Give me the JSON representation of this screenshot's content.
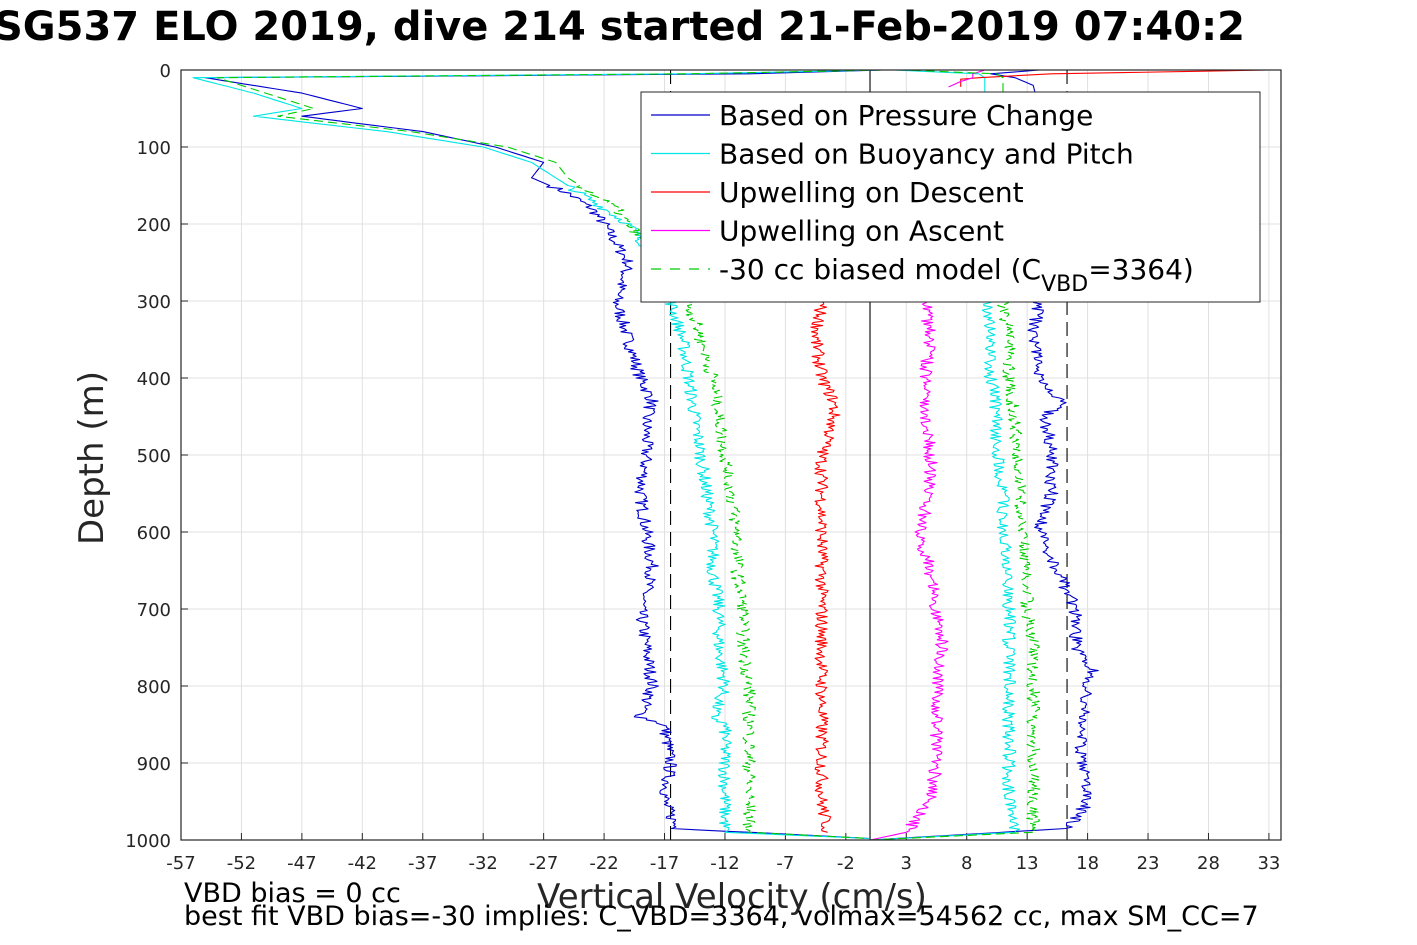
{
  "title": "SG537 ELO 2019, dive 214 started 21-Feb-2019 07:40:2",
  "chart_data": {
    "type": "line",
    "xlabel": "Vertical Velocity (cm/s)",
    "ylabel": "Depth (m)",
    "xlim": [
      -57,
      34
    ],
    "ylim": [
      0,
      1000
    ],
    "y_reversed": true,
    "grid": true,
    "xticks": [
      "-57",
      "-52",
      "-47",
      "-42",
      "-37",
      "-32",
      "-27",
      "-22",
      "-17",
      "-12",
      "-7",
      "-2",
      "3",
      "8",
      "13",
      "18",
      "23",
      "28",
      "33"
    ],
    "yticks": [
      "0",
      "100",
      "200",
      "300",
      "400",
      "500",
      "600",
      "700",
      "800",
      "900",
      "1000"
    ],
    "reference_lines": [
      {
        "x": -16.5,
        "style": "dashed",
        "color": "#000000"
      },
      {
        "x": 0,
        "style": "solid",
        "color": "#000000"
      },
      {
        "x": 16.3,
        "style": "dashed",
        "color": "#000000"
      }
    ],
    "legend": {
      "position": "top-right",
      "entries": [
        {
          "label": "Based on Pressure Change",
          "color": "#0000cc",
          "style": "solid"
        },
        {
          "label": "Based on Buoyancy and Pitch",
          "color": "#00e5e5",
          "style": "solid"
        },
        {
          "label": "Upwelling on Descent",
          "color": "#ff0000",
          "style": "solid"
        },
        {
          "label": "Upwelling on Ascent",
          "color": "#ff00ff",
          "style": "solid"
        },
        {
          "label_pre": "-30 cc biased model (C",
          "label_sub": "VBD",
          "label_post": "=3364)",
          "color": "#00cc00",
          "style": "dashed"
        }
      ]
    },
    "series": [
      {
        "name": "Based on Pressure Change",
        "color": "#0000cc",
        "branches": [
          {
            "depth": [
              0,
              5,
              10,
              30,
              50,
              60,
              80,
              100,
              120,
              140,
              160,
              180,
              200,
              250,
              300,
              350,
              400,
              430,
              450,
              500,
              550,
              600,
              650,
              700,
              750,
              800,
              840,
              850,
              900,
              950,
              985,
              998
            ],
            "value": [
              1,
              -10,
              -55,
              -47,
              -42,
              -47,
              -37,
              -31,
              -27,
              -28,
              -25,
              -23,
              -22,
              -20,
              -21,
              -20,
              -19,
              -18,
              -18.5,
              -18.5,
              -19,
              -18.5,
              -18,
              -19,
              -18.5,
              -18,
              -19,
              -17,
              -16.5,
              -17,
              -16,
              0
            ]
          },
          {
            "depth": [
              1000,
              985,
              950,
              900,
              850,
              800,
              780,
              750,
              700,
              650,
              600,
              550,
              500,
              450,
              430,
              400,
              350,
              300,
              250,
              200,
              150,
              100,
              50,
              20,
              10,
              5,
              0
            ],
            "value": [
              0,
              16.5,
              18,
              17.5,
              17.5,
              18,
              18.5,
              17,
              17,
              15.5,
              14,
              15,
              15,
              14.5,
              16,
              14,
              13.5,
              14,
              14,
              14,
              14,
              14,
              14,
              13.5,
              12,
              10,
              14
            ]
          }
        ]
      },
      {
        "name": "Based on Buoyancy and Pitch",
        "color": "#00e5e5",
        "branches": [
          {
            "depth": [
              0,
              5,
              10,
              30,
              50,
              60,
              80,
              100,
              120,
              140,
              160,
              180,
              200,
              250,
              300,
              350,
              400,
              450,
              500,
              550,
              600,
              650,
              700,
              750,
              800,
              840,
              850,
              900,
              950,
              990,
              998
            ],
            "value": [
              1,
              -15,
              -56,
              -51,
              -47,
              -51,
              -40,
              -32,
              -28,
              -26,
              -24,
              -22,
              -20,
              -17.5,
              -16.5,
              -15.5,
              -15,
              -14.5,
              -14,
              -13.5,
              -13,
              -13,
              -12.5,
              -12.5,
              -12,
              -13,
              -12,
              -12,
              -12,
              -12,
              0
            ]
          },
          {
            "depth": [
              1000,
              990,
              950,
              900,
              850,
              800,
              750,
              700,
              650,
              600,
              550,
              500,
              450,
              400,
              350,
              300,
              250,
              200,
              150,
              100,
              50,
              20,
              10,
              5,
              0
            ],
            "value": [
              0,
              12,
              11.5,
              11.5,
              11.5,
              11.5,
              11.5,
              11.5,
              11.5,
              11,
              11,
              10.5,
              10.5,
              10,
              10,
              9.5,
              9.5,
              9.5,
              9.5,
              9.5,
              9.5,
              9.5,
              9.5,
              9,
              2
            ]
          }
        ]
      },
      {
        "name": "Upwelling on Descent",
        "color": "#ff0000",
        "branches": [
          {
            "depth": [
              300,
              350,
              400,
              430,
              450,
              480,
              500,
              550,
              600,
              650,
              700,
              750,
              800,
              850,
              900,
              950,
              990
            ],
            "value": [
              -4,
              -4.5,
              -4,
              -3,
              -3,
              -3.5,
              -4,
              -4,
              -4,
              -4,
              -4,
              -4,
              -4,
              -4,
              -4,
              -4,
              -3.5
            ]
          },
          {
            "depth": [
              0,
              5,
              10,
              12,
              15,
              20,
              22
            ],
            "value": [
              33,
              15,
              9,
              7.5,
              7.5,
              7.5,
              7.5
            ]
          }
        ]
      },
      {
        "name": "Upwelling on Ascent",
        "color": "#ff00ff",
        "branches": [
          {
            "depth": [
              1000,
              990,
              950,
              900,
              850,
              800,
              750,
              700,
              650,
              600,
              550,
              500,
              450,
              400,
              350,
              300
            ],
            "value": [
              0,
              3,
              5,
              5.5,
              5.5,
              5.5,
              6,
              5.5,
              5,
              4,
              5,
              5,
              4.5,
              4.5,
              5,
              4.5
            ]
          },
          {
            "depth": [
              22,
              15,
              10,
              5,
              0
            ],
            "value": [
              6.5,
              7.5,
              8.5,
              8.5,
              9.5
            ]
          }
        ]
      },
      {
        "name": "-30 cc biased model (C_VBD=3364)",
        "color": "#00cc00",
        "dashed": true,
        "branches": [
          {
            "depth": [
              0,
              5,
              10,
              30,
              50,
              60,
              80,
              100,
              120,
              140,
              160,
              180,
              200,
              250,
              300,
              350,
              400,
              450,
              500,
              550,
              600,
              650,
              700,
              750,
              800,
              850,
              900,
              950,
              990,
              998
            ],
            "value": [
              1,
              -15,
              -54,
              -50,
              -46,
              -49,
              -38,
              -30,
              -26,
              -25,
              -23,
              -21,
              -20,
              -17,
              -15,
              -14,
              -13,
              -12.5,
              -12,
              -11.5,
              -11,
              -11,
              -10.5,
              -10.5,
              -10,
              -10,
              -10,
              -10,
              -10,
              0
            ]
          },
          {
            "depth": [
              1000,
              990,
              950,
              900,
              850,
              800,
              750,
              700,
              650,
              600,
              550,
              500,
              450,
              400,
              350,
              300,
              250,
              200,
              150,
              100,
              50,
              20,
              10,
              5,
              0
            ],
            "value": [
              0,
              13.5,
              13.5,
              13.5,
              13.5,
              13.5,
              13.5,
              13,
              13,
              12.5,
              12.5,
              12,
              12,
              11.5,
              11.5,
              11,
              11,
              11,
              11,
              11,
              11,
              11,
              11,
              10.5,
              3
            ]
          }
        ]
      }
    ]
  },
  "footer": {
    "line1": "VBD bias = 0 cc",
    "line2": "best fit VBD bias=-30 implies: C_VBD=3364, volmax=54562 cc, max SM_CC=7"
  }
}
